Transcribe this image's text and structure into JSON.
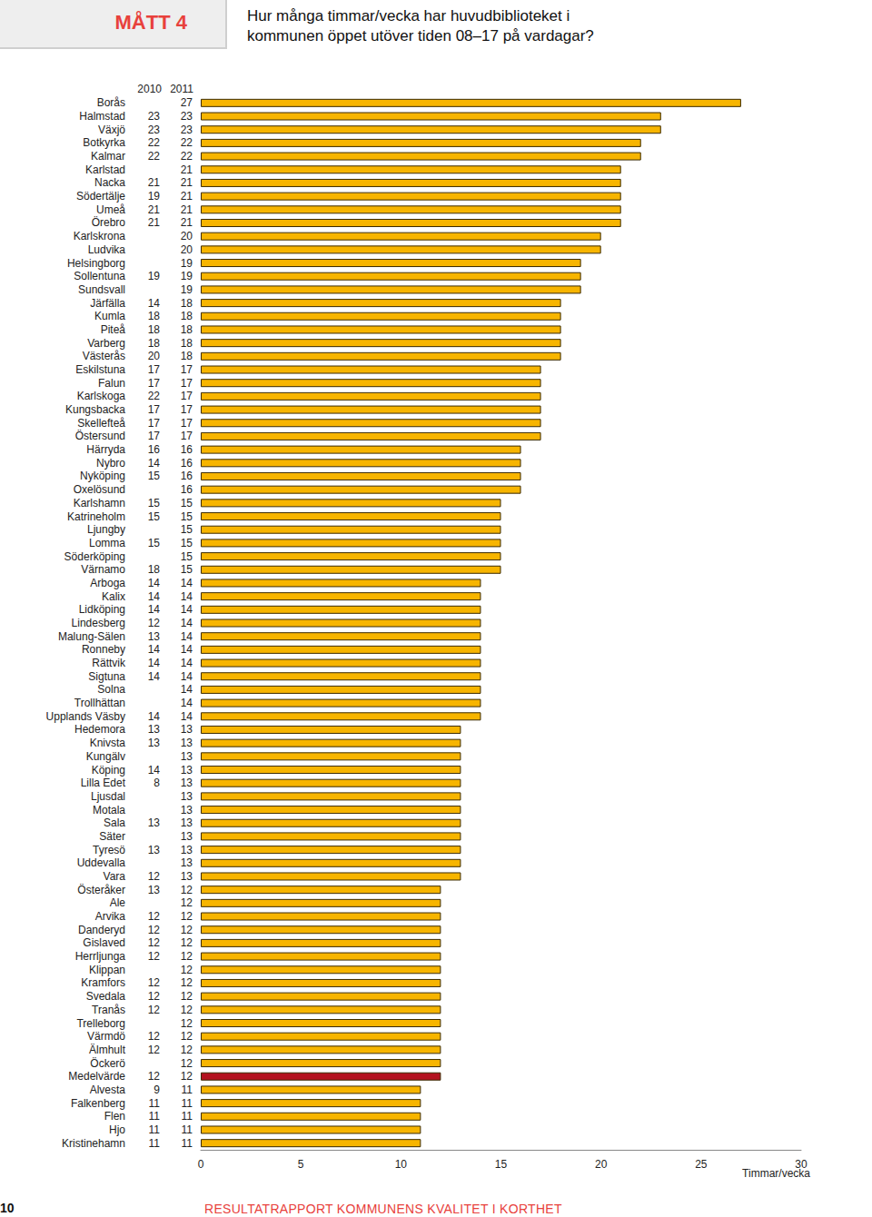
{
  "header": {
    "badge": "MÅTT 4"
  },
  "footer": {
    "page": "10",
    "text": "RESULTATRAPPORT KOMMUNENS KVALITET I KORTHET"
  },
  "chart_data": {
    "type": "bar",
    "orientation": "horizontal",
    "title": "Hur många timmar/vecka har huvudbiblioteket i kommunen öppet utöver tiden 08–17 på vardagar?",
    "x_label": "Timmar/vecka",
    "categories": [
      "Borås",
      "Halmstad",
      "Växjö",
      "Botkyrka",
      "Kalmar",
      "Karlstad",
      "Nacka",
      "Södertälje",
      "Umeå",
      "Örebro",
      "Karlskrona",
      "Ludvika",
      "Helsingborg",
      "Sollentuna",
      "Sundsvall",
      "Järfälla",
      "Kumla",
      "Piteå",
      "Varberg",
      "Västerås",
      "Eskilstuna",
      "Falun",
      "Karlskoga",
      "Kungsbacka",
      "Skellefteå",
      "Östersund",
      "Härryda",
      "Nybro",
      "Nyköping",
      "Oxelösund",
      "Karlshamn",
      "Katrineholm",
      "Ljungby",
      "Lomma",
      "Söderköping",
      "Värnamo",
      "Arboga",
      "Kalix",
      "Lidköping",
      "Lindesberg",
      "Malung-Sälen",
      "Ronneby",
      "Rättvik",
      "Sigtuna",
      "Solna",
      "Trollhättan",
      "Upplands Väsby",
      "Hedemora",
      "Knivsta",
      "Kungälv",
      "Köping",
      "Lilla Edet",
      "Ljusdal",
      "Motala",
      "Sala",
      "Säter",
      "Tyresö",
      "Uddevalla",
      "Vara",
      "Österåker",
      "Ale",
      "Arvika",
      "Danderyd",
      "Gislaved",
      "Herrljunga",
      "Klippan",
      "Kramfors",
      "Svedala",
      "Tranås",
      "Trelleborg",
      "Värmdö",
      "Älmhult",
      "Öckerö",
      "Medelvärde",
      "Alvesta",
      "Falkenberg",
      "Flen",
      "Hjo",
      "Kristinehamn"
    ],
    "series": [
      {
        "name": "2010",
        "type": "text",
        "values": [
          null,
          23,
          23,
          22,
          22,
          null,
          21,
          19,
          21,
          21,
          null,
          null,
          null,
          19,
          null,
          14,
          18,
          18,
          18,
          20,
          17,
          17,
          22,
          17,
          17,
          17,
          16,
          14,
          15,
          null,
          15,
          15,
          null,
          15,
          null,
          18,
          14,
          14,
          14,
          12,
          13,
          14,
          14,
          14,
          null,
          null,
          14,
          13,
          13,
          null,
          14,
          8,
          null,
          null,
          13,
          null,
          13,
          null,
          12,
          13,
          null,
          12,
          12,
          12,
          12,
          null,
          12,
          12,
          12,
          null,
          12,
          12,
          null,
          12,
          9,
          11,
          11,
          11,
          11
        ]
      },
      {
        "name": "2011",
        "type": "bar",
        "values": [
          27,
          23,
          23,
          22,
          22,
          21,
          21,
          21,
          21,
          21,
          20,
          20,
          19,
          19,
          19,
          18,
          18,
          18,
          18,
          18,
          17,
          17,
          17,
          17,
          17,
          17,
          16,
          16,
          16,
          16,
          15,
          15,
          15,
          15,
          15,
          15,
          14,
          14,
          14,
          14,
          14,
          14,
          14,
          14,
          14,
          14,
          14,
          13,
          13,
          13,
          13,
          13,
          13,
          13,
          13,
          13,
          13,
          13,
          13,
          12,
          12,
          12,
          12,
          12,
          12,
          12,
          12,
          12,
          12,
          12,
          12,
          12,
          12,
          12,
          11,
          11,
          11,
          11,
          11
        ],
        "colors": [
          "#f7b500",
          "#f7b500",
          "#f7b500",
          "#f7b500",
          "#f7b500",
          "#f7b500",
          "#f7b500",
          "#f7b500",
          "#f7b500",
          "#f7b500",
          "#f7b500",
          "#f7b500",
          "#f7b500",
          "#f7b500",
          "#f7b500",
          "#f7b500",
          "#f7b500",
          "#f7b500",
          "#f7b500",
          "#f7b500",
          "#f7b500",
          "#f7b500",
          "#f7b500",
          "#f7b500",
          "#f7b500",
          "#f7b500",
          "#f7b500",
          "#f7b500",
          "#f7b500",
          "#f7b500",
          "#f7b500",
          "#f7b500",
          "#f7b500",
          "#f7b500",
          "#f7b500",
          "#f7b500",
          "#f7b500",
          "#f7b500",
          "#f7b500",
          "#f7b500",
          "#f7b500",
          "#f7b500",
          "#f7b500",
          "#f7b500",
          "#f7b500",
          "#f7b500",
          "#f7b500",
          "#f7b500",
          "#f7b500",
          "#f7b500",
          "#f7b500",
          "#f7b500",
          "#f7b500",
          "#f7b500",
          "#f7b500",
          "#f7b500",
          "#f7b500",
          "#f7b500",
          "#f7b500",
          "#f7b500",
          "#f7b500",
          "#f7b500",
          "#f7b500",
          "#f7b500",
          "#f7b500",
          "#f7b500",
          "#f7b500",
          "#f7b500",
          "#f7b500",
          "#f7b500",
          "#f7b500",
          "#f7b500",
          "#f7b500",
          "#b3131f",
          "#f7b500",
          "#f7b500",
          "#f7b500",
          "#f7b500",
          "#f7b500"
        ]
      }
    ],
    "xlim": [
      0,
      30
    ],
    "xticks": [
      0,
      5,
      10,
      15,
      20,
      25,
      30
    ],
    "grid": false
  }
}
